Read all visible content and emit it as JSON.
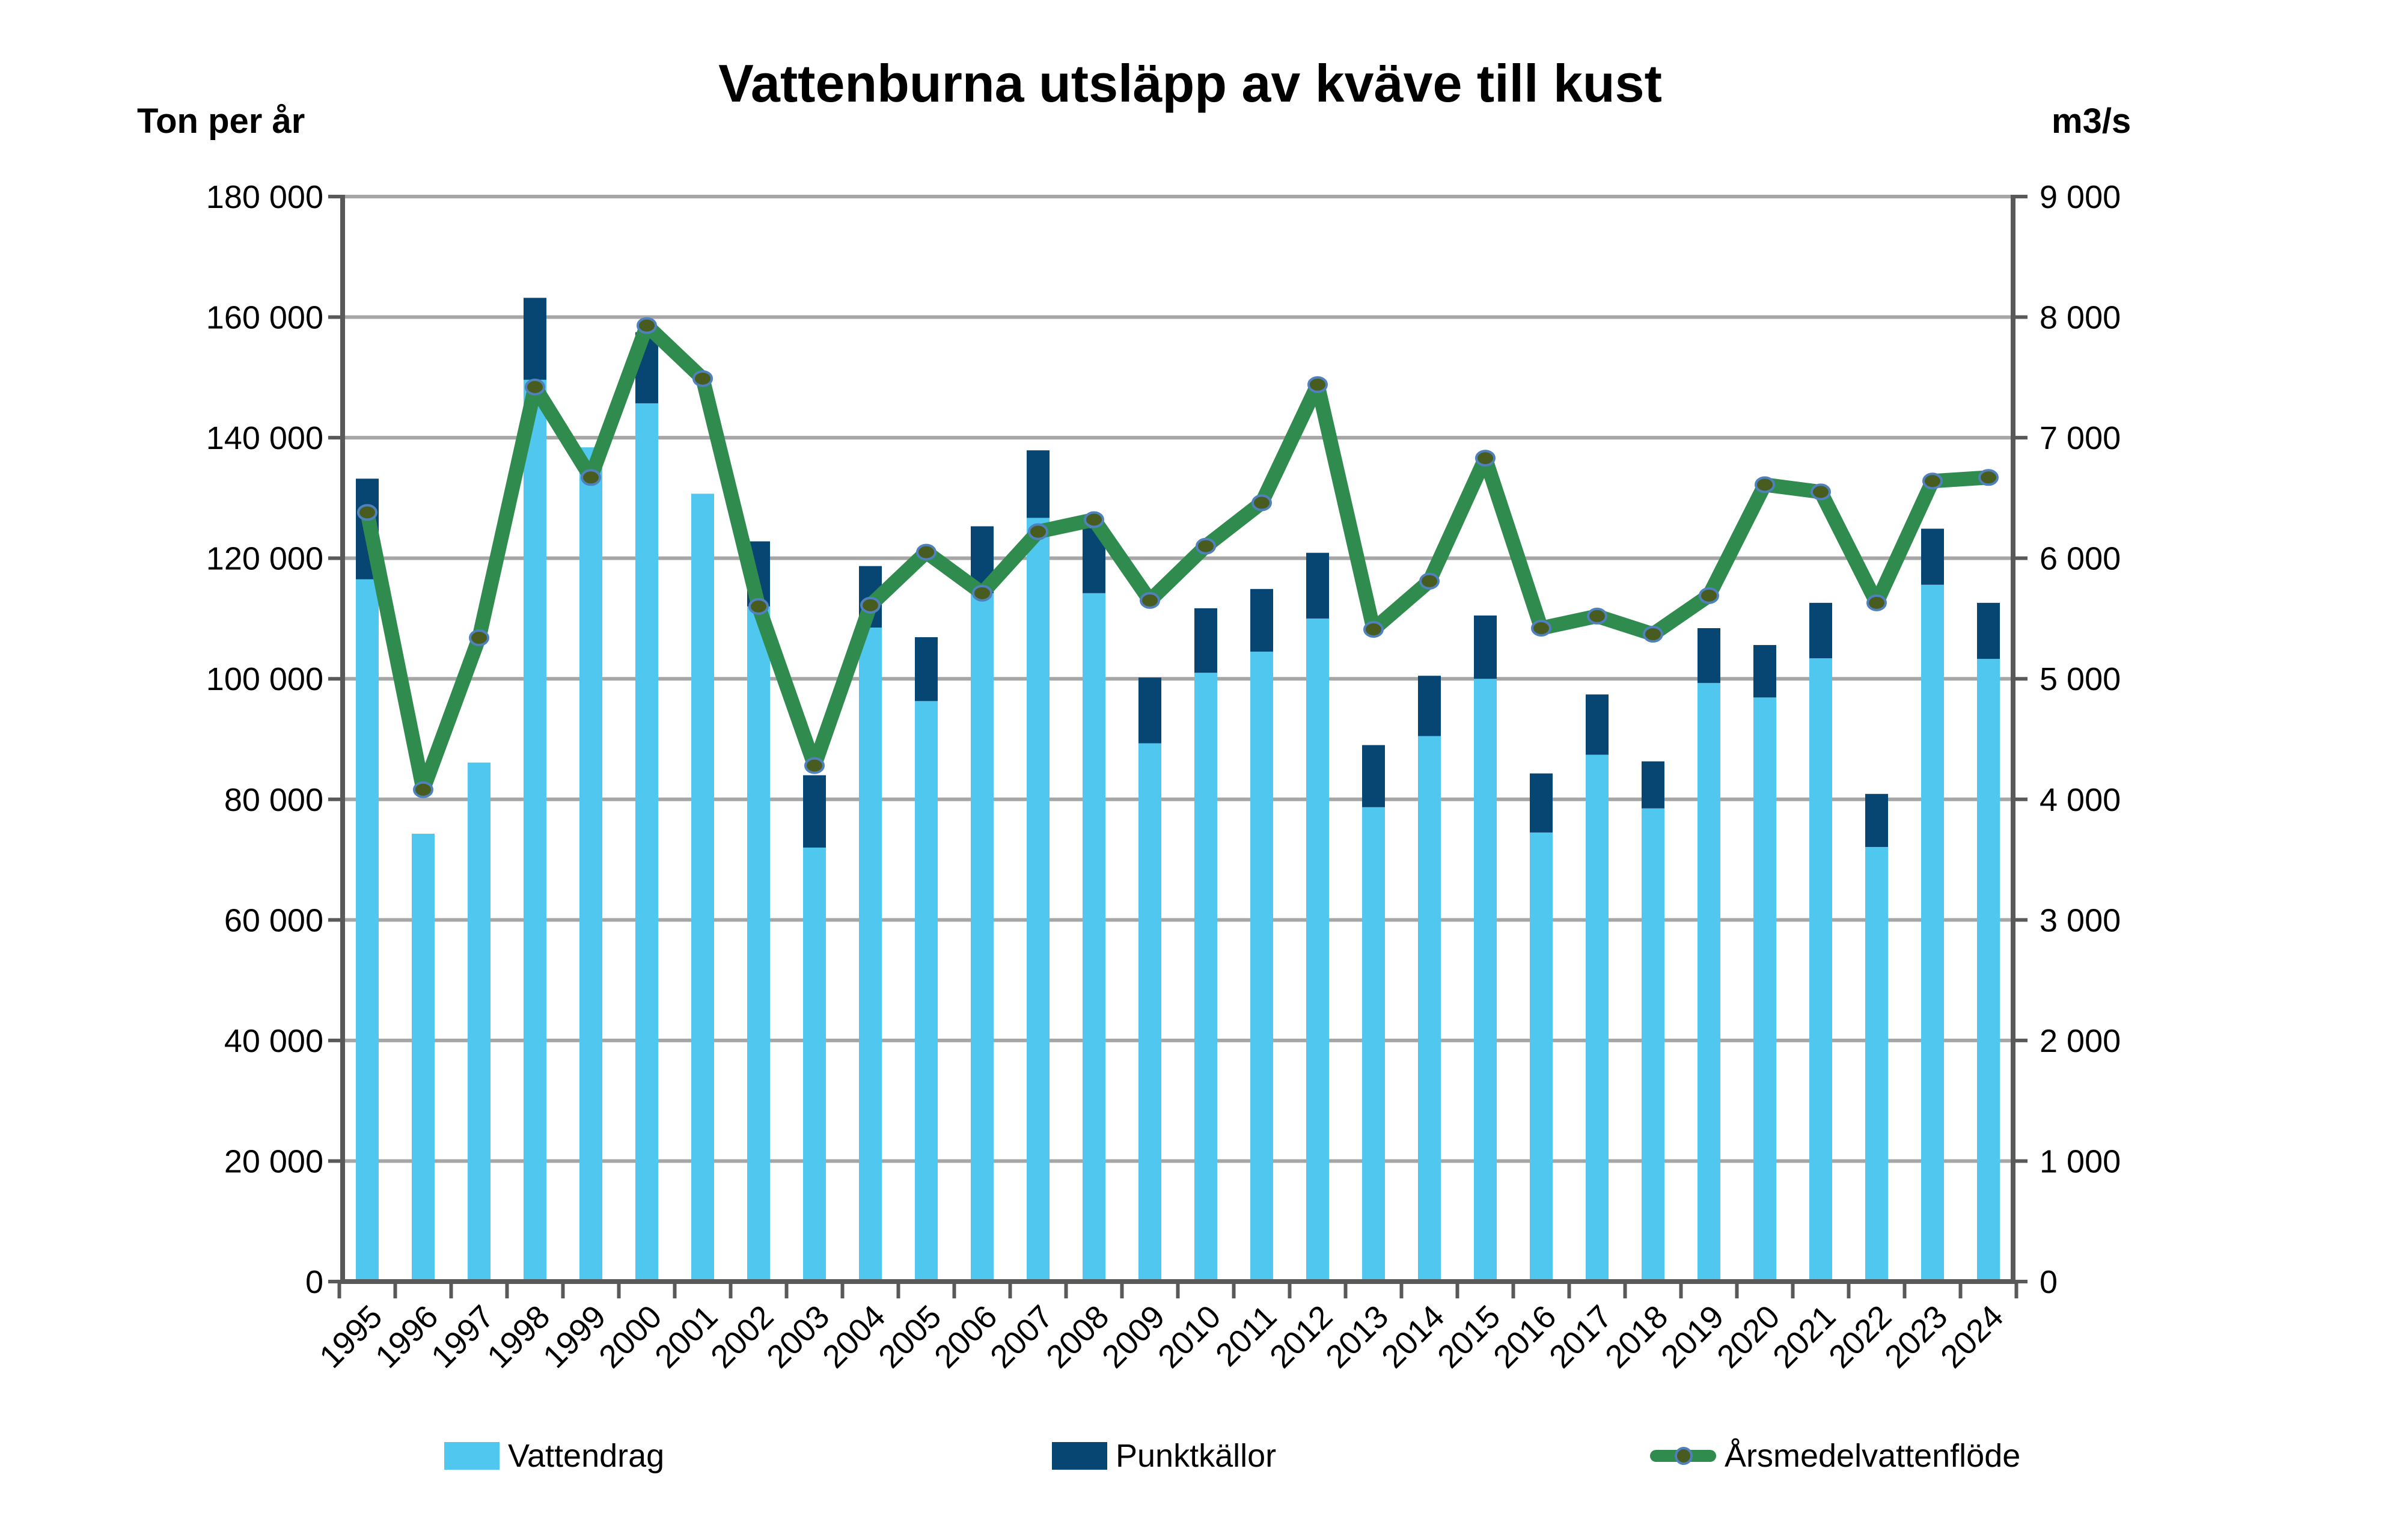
{
  "chart_data": {
    "type": "bar",
    "subtype": "stacked-bars-with-line-overlay",
    "title": "Vattenburna utsläpp av kväve till kust",
    "grid": "horizontal",
    "legend_position": "bottom",
    "left_axis": {
      "unit": "Ton per år",
      "min": 0,
      "max": 180000,
      "tick_step": 20000,
      "tick_labels": [
        "180 000",
        "160 000",
        "140 000",
        "120 000",
        "100 000",
        "80 000",
        "60 000",
        "40 000",
        "20 000",
        "0"
      ]
    },
    "right_axis": {
      "unit": "m3/s",
      "min": 0,
      "max": 9000,
      "tick_step": 1000,
      "tick_labels": [
        "9 000",
        "8 000",
        "7 000",
        "6 000",
        "5 000",
        "4 000",
        "3 000",
        "2 000",
        "1 000",
        "0"
      ]
    },
    "categories": [
      "1995",
      "1996",
      "1997",
      "1998",
      "1999",
      "2000",
      "2001",
      "2002",
      "2003",
      "2004",
      "2005",
      "2006",
      "2007",
      "2008",
      "2009",
      "2010",
      "2011",
      "2012",
      "2013",
      "2014",
      "2015",
      "2016",
      "2017",
      "2018",
      "2019",
      "2020",
      "2021",
      "2022",
      "2023",
      "2024"
    ],
    "series": [
      {
        "name": "Vattendrag",
        "render": "bar-stack",
        "axis": "left",
        "color": "#4FC7EF",
        "values": [
          116500,
          74300,
          86100,
          149600,
          138400,
          145700,
          130700,
          112000,
          72000,
          108500,
          96300,
          114200,
          126700,
          114200,
          89300,
          101000,
          104500,
          110000,
          78700,
          90500,
          100000,
          74500,
          87400,
          78500,
          99300,
          96900,
          103400,
          72100,
          115600,
          103300
        ]
      },
      {
        "name": "Punktkällor",
        "render": "bar-stack",
        "axis": "left",
        "color": "#074672",
        "values": [
          16700,
          0,
          0,
          13600,
          0,
          11800,
          0,
          10800,
          12000,
          10200,
          10600,
          11100,
          11200,
          10800,
          10900,
          10700,
          10400,
          10900,
          10300,
          10000,
          10500,
          9800,
          10000,
          7800,
          9100,
          8700,
          9200,
          8800,
          9300,
          9300
        ]
      },
      {
        "name": "Årsmedelvattenflöde",
        "render": "line",
        "axis": "right",
        "color": "#2F8B4E",
        "marker_fill": "#495C1F",
        "marker_stroke": "#4F81BD",
        "values": [
          6380,
          4080,
          5340,
          7420,
          6670,
          7930,
          7490,
          5600,
          4280,
          5610,
          6050,
          5710,
          6220,
          6320,
          5650,
          6100,
          6460,
          7440,
          5410,
          5810,
          6830,
          5420,
          5520,
          5370,
          5690,
          6610,
          6550,
          5630,
          6640,
          6670
        ]
      }
    ],
    "colors": {
      "axis_line": "#595959",
      "gridline": "#A6A6A6",
      "text": "#000000",
      "background": "#FFFFFF"
    }
  }
}
